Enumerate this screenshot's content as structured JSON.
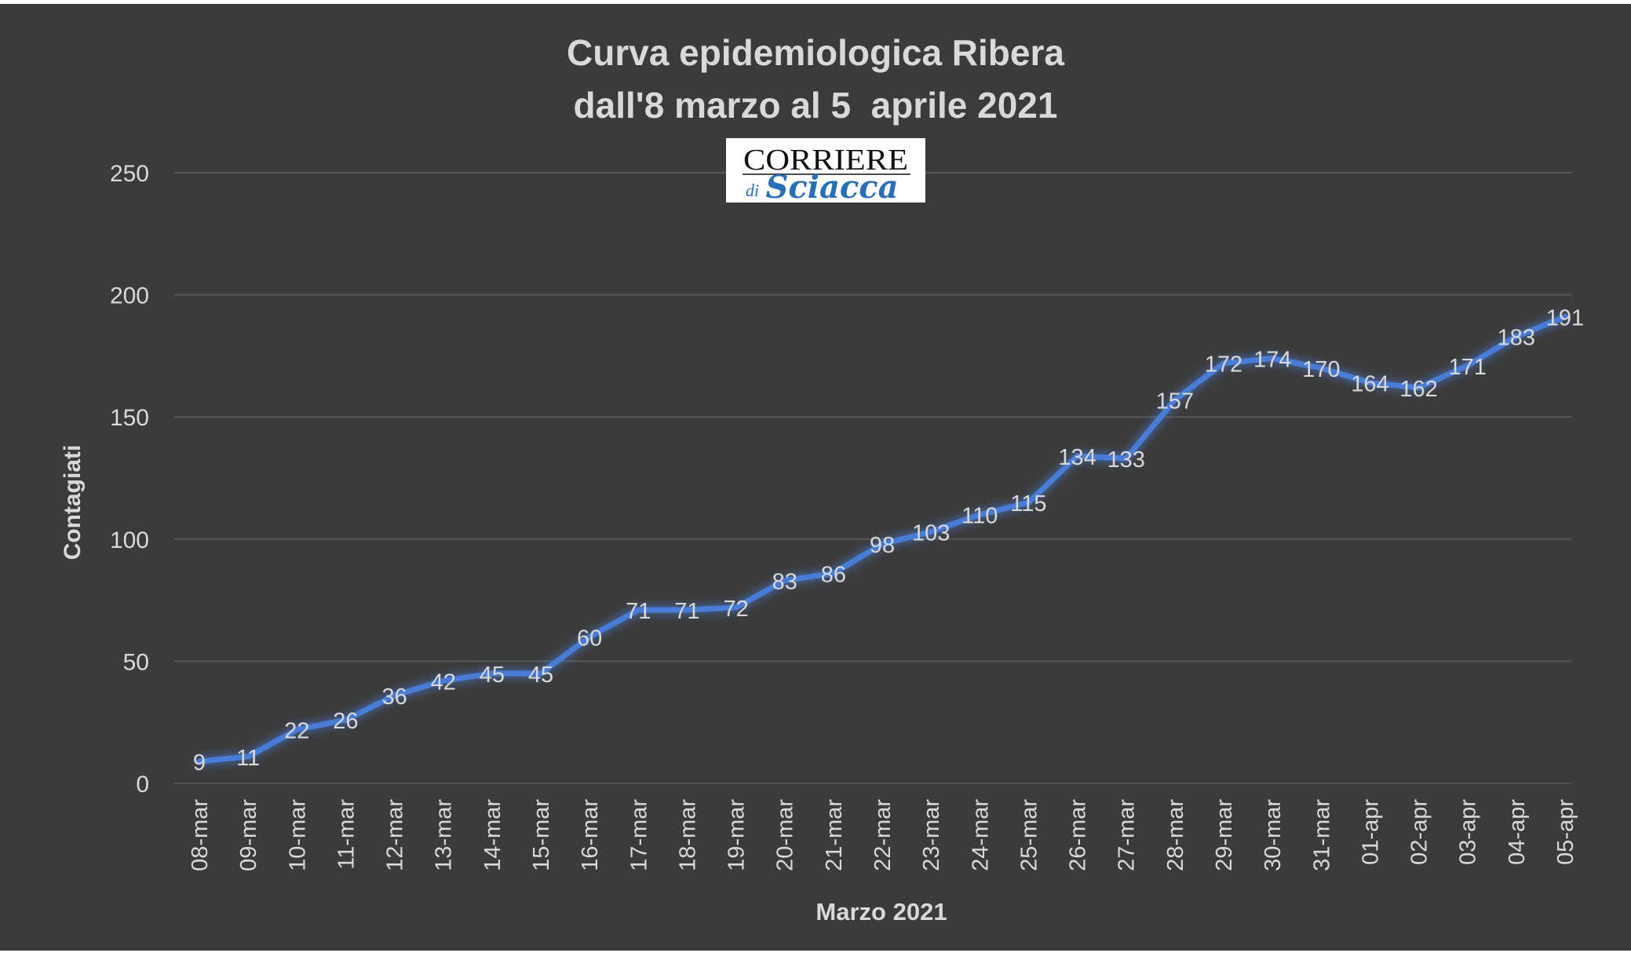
{
  "chart_data": {
    "type": "line",
    "title_line1": "Curva epidemiologica Ribera",
    "title_line2": "dall'8 marzo al 5  aprile 2021",
    "logo": {
      "text_top": "CORRIERE",
      "text_small": "di",
      "text_script": "Sciacca"
    },
    "xlabel": "Marzo 2021",
    "ylabel": "Contagiati",
    "ylim": [
      0,
      250
    ],
    "yticks": [
      0,
      50,
      100,
      150,
      200,
      250
    ],
    "grid": true,
    "categories": [
      "08-mar",
      "09-mar",
      "10-mar",
      "11-mar",
      "12-mar",
      "13-mar",
      "14-mar",
      "15-mar",
      "16-mar",
      "17-mar",
      "18-mar",
      "19-mar",
      "20-mar",
      "21-mar",
      "22-mar",
      "23-mar",
      "24-mar",
      "25-mar",
      "26-mar",
      "27-mar",
      "28-mar",
      "29-mar",
      "30-mar",
      "31-mar",
      "01-apr",
      "02-apr",
      "03-apr",
      "04-apr",
      "05-apr"
    ],
    "series": [
      {
        "values": [
          9,
          11,
          22,
          26,
          36,
          42,
          45,
          45,
          60,
          71,
          71,
          72,
          83,
          86,
          98,
          103,
          110,
          115,
          134,
          133,
          157,
          172,
          174,
          170,
          164,
          162,
          171,
          183,
          191
        ]
      }
    ],
    "colors": {
      "background": "#3b3b3b",
      "line": "#4a7bd6",
      "text": "#d9d9d9",
      "grid": "#595959"
    }
  }
}
